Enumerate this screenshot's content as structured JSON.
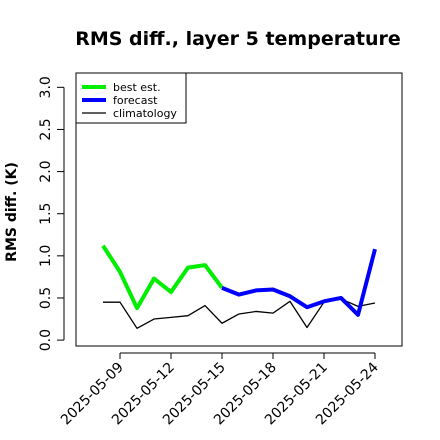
{
  "chart_data": {
    "type": "line",
    "title": "RMS diff., layer 5 temperature",
    "xlabel": "",
    "ylabel": "RMS diff. (K)",
    "x": [
      "2025-05-08",
      "2025-05-09",
      "2025-05-10",
      "2025-05-11",
      "2025-05-12",
      "2025-05-13",
      "2025-05-14",
      "2025-05-15",
      "2025-05-16",
      "2025-05-17",
      "2025-05-18",
      "2025-05-19",
      "2025-05-20",
      "2025-05-21",
      "2025-05-22",
      "2025-05-23",
      "2025-05-24"
    ],
    "xticks": [
      "2025-05-09",
      "2025-05-12",
      "2025-05-15",
      "2025-05-18",
      "2025-05-21",
      "2025-05-24"
    ],
    "highlight_tick": "2025-05-15",
    "highlight_color": "#228b22",
    "yticks": [
      "0.0",
      "0.5",
      "1.0",
      "1.5",
      "2.0",
      "2.5",
      "3.0"
    ],
    "ylim": [
      -0.07,
      3.17
    ],
    "grid": false,
    "legend_position": "top-left",
    "series": [
      {
        "name": "best est.",
        "color": "#00ee00",
        "values": [
          1.12,
          0.81,
          0.38,
          0.73,
          0.57,
          0.86,
          0.89,
          0.62,
          null,
          null,
          null,
          null,
          null,
          null,
          null,
          null,
          1.13
        ]
      },
      {
        "name": "forecast",
        "color": "#0000ff",
        "values": [
          null,
          null,
          null,
          null,
          null,
          null,
          null,
          0.62,
          0.54,
          0.59,
          0.6,
          0.52,
          0.39,
          0.46,
          0.5,
          0.3,
          1.08
        ]
      },
      {
        "name": "climatology",
        "color": "#000000",
        "values": [
          0.45,
          0.45,
          0.14,
          0.25,
          0.27,
          0.29,
          0.41,
          0.2,
          0.31,
          0.34,
          0.32,
          0.46,
          0.15,
          0.45,
          0.49,
          0.4,
          0.44
        ]
      }
    ]
  }
}
